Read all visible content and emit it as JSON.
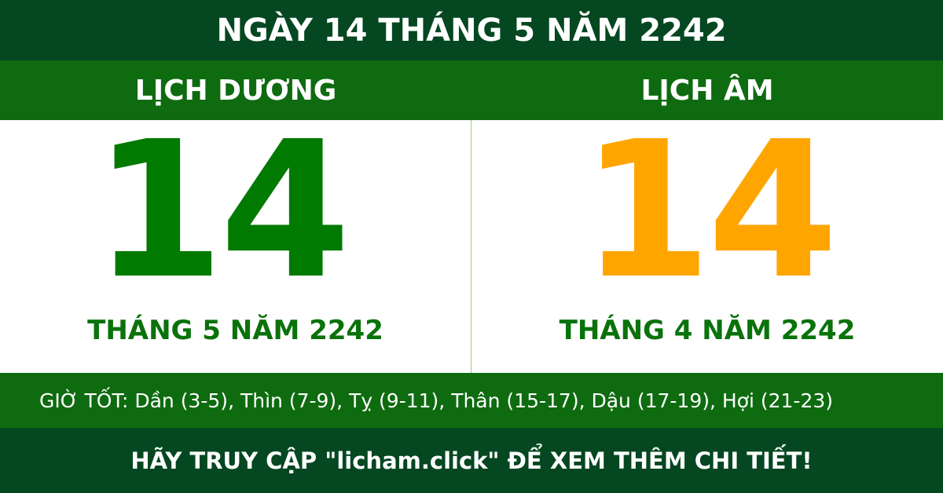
{
  "header": {
    "title": "NGÀY 14 THÁNG 5 NĂM 2242"
  },
  "solar": {
    "label": "LỊCH DƯƠNG",
    "day": "14",
    "month_year": "THÁNG 5 NĂM 2242"
  },
  "lunar": {
    "label": "LỊCH ÂM",
    "day": "14",
    "month_year": "THÁNG 4 NĂM 2242"
  },
  "good_hours": "GIỜ TỐT: Dần (3-5), Thìn (7-9), Tỵ (9-11), Thân (15-17), Dậu (17-19), Hợi (21-23)",
  "footer": {
    "text": "HÃY TRUY CẬP \"licham.click\" ĐỂ XEM THÊM CHI TIẾT!"
  },
  "colors": {
    "dark_green": "#044721",
    "green": "#0e6b10",
    "solar_day": "#007a00",
    "lunar_day": "#ffa500"
  }
}
